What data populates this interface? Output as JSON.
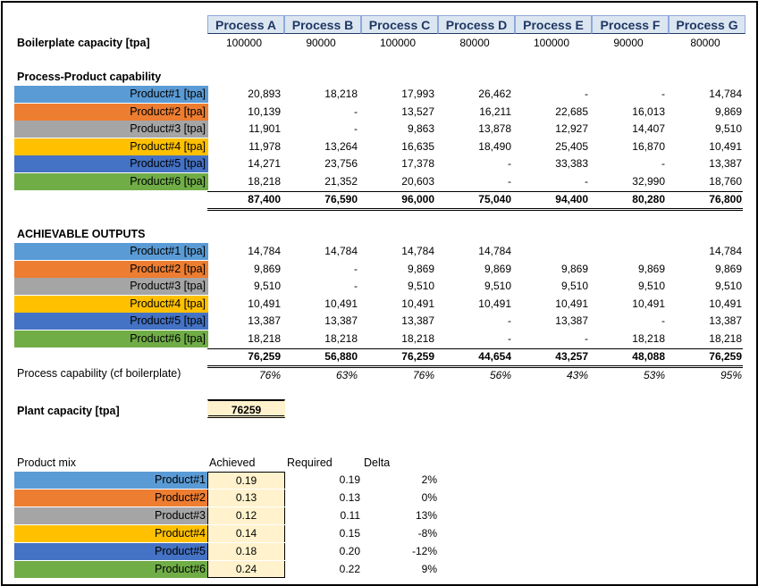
{
  "colors": {
    "product1": "#5b9bd5",
    "product2": "#ed7d31",
    "product3": "#a5a5a5",
    "product4": "#ffc000",
    "product5": "#4472c4",
    "product6": "#70ad47",
    "header_bg": "#dce6f1",
    "header_text": "#1f3864",
    "highlight_bg": "#fff2cc"
  },
  "processes": [
    "Process A",
    "Process B",
    "Process C",
    "Process D",
    "Process E",
    "Process F",
    "Process G"
  ],
  "boilerplate": {
    "label": "Boilerplate capacity [tpa]",
    "values": [
      "100000",
      "90000",
      "100000",
      "80000",
      "100000",
      "90000",
      "80000"
    ]
  },
  "capability": {
    "title": "Process-Product capability",
    "rows": [
      {
        "label": "Product#1 [tpa]",
        "values": [
          "20,893",
          "18,218",
          "17,993",
          "26,462",
          "-",
          "-",
          "14,784"
        ]
      },
      {
        "label": "Product#2 [tpa]",
        "values": [
          "10,139",
          "-",
          "13,527",
          "16,211",
          "22,685",
          "16,013",
          "9,869"
        ]
      },
      {
        "label": "Product#3 [tpa]",
        "values": [
          "11,901",
          "-",
          "9,863",
          "13,878",
          "12,927",
          "14,407",
          "9,510"
        ]
      },
      {
        "label": "Product#4 [tpa]",
        "values": [
          "11,978",
          "13,264",
          "16,635",
          "18,490",
          "25,405",
          "16,870",
          "10,491"
        ]
      },
      {
        "label": "Product#5 [tpa]",
        "values": [
          "14,271",
          "23,756",
          "17,378",
          "-",
          "33,383",
          "-",
          "13,387"
        ]
      },
      {
        "label": "Product#6 [tpa]",
        "values": [
          "18,218",
          "21,352",
          "20,603",
          "-",
          "-",
          "32,990",
          "18,760"
        ]
      }
    ],
    "totals": [
      "87,400",
      "76,590",
      "96,000",
      "75,040",
      "94,400",
      "80,280",
      "76,800"
    ]
  },
  "achievable": {
    "title": "ACHIEVABLE OUTPUTS",
    "rows": [
      {
        "label": "Product#1 [tpa]",
        "values": [
          "14,784",
          "14,784",
          "14,784",
          "14,784",
          "",
          "",
          "14,784"
        ]
      },
      {
        "label": "Product#2 [tpa]",
        "values": [
          "9,869",
          "-",
          "9,869",
          "9,869",
          "9,869",
          "9,869",
          "9,869"
        ]
      },
      {
        "label": "Product#3 [tpa]",
        "values": [
          "9,510",
          "-",
          "9,510",
          "9,510",
          "9,510",
          "9,510",
          "9,510"
        ]
      },
      {
        "label": "Product#4 [tpa]",
        "values": [
          "10,491",
          "10,491",
          "10,491",
          "10,491",
          "10,491",
          "10,491",
          "10,491"
        ]
      },
      {
        "label": "Product#5 [tpa]",
        "values": [
          "13,387",
          "13,387",
          "13,387",
          "-",
          "13,387",
          "-",
          "13,387"
        ]
      },
      {
        "label": "Product#6 [tpa]",
        "values": [
          "18,218",
          "18,218",
          "18,218",
          "-",
          "-",
          "18,218",
          "18,218"
        ]
      }
    ],
    "totals": [
      "76,259",
      "56,880",
      "76,259",
      "44,654",
      "43,257",
      "48,088",
      "76,259"
    ]
  },
  "process_capability": {
    "label": "Process capability (cf boilerplate)",
    "values": [
      "76%",
      "63%",
      "76%",
      "56%",
      "43%",
      "53%",
      "95%"
    ]
  },
  "plant_capacity": {
    "label": "Plant capacity [tpa]",
    "value": "76259"
  },
  "product_mix": {
    "title": "Product mix",
    "headers": {
      "achieved": "Achieved",
      "required": "Required",
      "delta": "Delta"
    },
    "rows": [
      {
        "label": "Product#1",
        "achieved": "0.19",
        "required": "0.19",
        "delta": "2%"
      },
      {
        "label": "Product#2",
        "achieved": "0.13",
        "required": "0.13",
        "delta": "0%"
      },
      {
        "label": "Product#3",
        "achieved": "0.12",
        "required": "0.11",
        "delta": "13%"
      },
      {
        "label": "Product#4",
        "achieved": "0.14",
        "required": "0.15",
        "delta": "-8%"
      },
      {
        "label": "Product#5",
        "achieved": "0.18",
        "required": "0.20",
        "delta": "-12%"
      },
      {
        "label": "Product#6",
        "achieved": "0.24",
        "required": "0.22",
        "delta": "9%"
      }
    ]
  }
}
